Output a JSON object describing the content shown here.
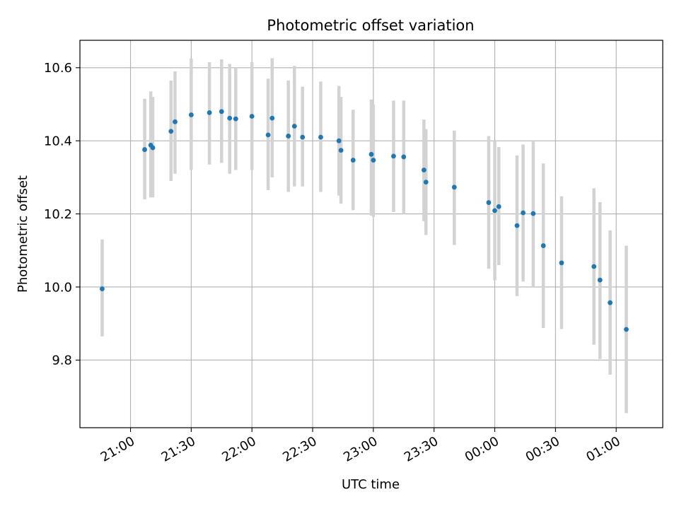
{
  "chart_data": {
    "type": "scatter",
    "title": "Photometric offset variation",
    "xlabel": "UTC time",
    "ylabel": "Photometric offset",
    "x_axis_kind": "time",
    "xlim": [
      "20:35",
      "01:23"
    ],
    "ylim": [
      9.615,
      10.675
    ],
    "x_ticks": [
      "21:00",
      "21:30",
      "22:00",
      "22:30",
      "23:00",
      "23:30",
      "00:00",
      "00:30",
      "01:00"
    ],
    "y_ticks": [
      9.8,
      10.0,
      10.2,
      10.4,
      10.6
    ],
    "y_tick_labels": [
      "9.8",
      "10.0",
      "10.2",
      "10.4",
      "10.6"
    ],
    "grid": true,
    "legend": "none",
    "colors": {
      "points": "#1f77b4",
      "errorbars": "#d3d3d3",
      "grid": "#b0b0b0",
      "axes": "#000000"
    },
    "series": [
      {
        "points": [
          {
            "x": "20:46",
            "y": 9.995,
            "err_low": 9.865,
            "err_high": 10.13
          },
          {
            "x": "21:07",
            "y": 10.376,
            "err_low": 10.24,
            "err_high": 10.515
          },
          {
            "x": "21:10",
            "y": 10.388,
            "err_low": 10.245,
            "err_high": 10.535
          },
          {
            "x": "21:11",
            "y": 10.381,
            "err_low": 10.245,
            "err_high": 10.52
          },
          {
            "x": "21:20",
            "y": 10.426,
            "err_low": 10.29,
            "err_high": 10.565
          },
          {
            "x": "21:22",
            "y": 10.452,
            "err_low": 10.31,
            "err_high": 10.59
          },
          {
            "x": "21:30",
            "y": 10.471,
            "err_low": 10.32,
            "err_high": 10.625
          },
          {
            "x": "21:39",
            "y": 10.477,
            "err_low": 10.335,
            "err_high": 10.615
          },
          {
            "x": "21:45",
            "y": 10.48,
            "err_low": 10.34,
            "err_high": 10.623
          },
          {
            "x": "21:49",
            "y": 10.462,
            "err_low": 10.31,
            "err_high": 10.61
          },
          {
            "x": "21:52",
            "y": 10.46,
            "err_low": 10.32,
            "err_high": 10.6
          },
          {
            "x": "22:00",
            "y": 10.467,
            "err_low": 10.32,
            "err_high": 10.615
          },
          {
            "x": "22:08",
            "y": 10.416,
            "err_low": 10.265,
            "err_high": 10.57
          },
          {
            "x": "22:10",
            "y": 10.462,
            "err_low": 10.3,
            "err_high": 10.626
          },
          {
            "x": "22:18",
            "y": 10.413,
            "err_low": 10.26,
            "err_high": 10.565
          },
          {
            "x": "22:21",
            "y": 10.44,
            "err_low": 10.275,
            "err_high": 10.605
          },
          {
            "x": "22:25",
            "y": 10.41,
            "err_low": 10.275,
            "err_high": 10.548
          },
          {
            "x": "22:34",
            "y": 10.41,
            "err_low": 10.26,
            "err_high": 10.562
          },
          {
            "x": "22:43",
            "y": 10.4,
            "err_low": 10.25,
            "err_high": 10.55
          },
          {
            "x": "22:44",
            "y": 10.374,
            "err_low": 10.228,
            "err_high": 10.52
          },
          {
            "x": "22:50",
            "y": 10.347,
            "err_low": 10.21,
            "err_high": 10.485
          },
          {
            "x": "22:59",
            "y": 10.363,
            "err_low": 10.195,
            "err_high": 10.513
          },
          {
            "x": "23:00",
            "y": 10.347,
            "err_low": 10.192,
            "err_high": 10.5
          },
          {
            "x": "23:10",
            "y": 10.358,
            "err_low": 10.205,
            "err_high": 10.51
          },
          {
            "x": "23:15",
            "y": 10.356,
            "err_low": 10.2,
            "err_high": 10.51
          },
          {
            "x": "23:25",
            "y": 10.32,
            "err_low": 10.18,
            "err_high": 10.458
          },
          {
            "x": "23:26",
            "y": 10.287,
            "err_low": 10.142,
            "err_high": 10.432
          },
          {
            "x": "23:40",
            "y": 10.273,
            "err_low": 10.115,
            "err_high": 10.428
          },
          {
            "x": "23:57",
            "y": 10.231,
            "err_low": 10.05,
            "err_high": 10.413
          },
          {
            "x": "00:00",
            "y": 10.209,
            "err_low": 10.018,
            "err_high": 10.4
          },
          {
            "x": "00:02",
            "y": 10.22,
            "err_low": 10.06,
            "err_high": 10.383
          },
          {
            "x": "00:11",
            "y": 10.168,
            "err_low": 9.975,
            "err_high": 10.36
          },
          {
            "x": "00:14",
            "y": 10.203,
            "err_low": 10.015,
            "err_high": 10.39
          },
          {
            "x": "00:19",
            "y": 10.201,
            "err_low": 10.0,
            "err_high": 10.398
          },
          {
            "x": "00:24",
            "y": 10.113,
            "err_low": 9.888,
            "err_high": 10.338
          },
          {
            "x": "00:33",
            "y": 10.066,
            "err_low": 9.885,
            "err_high": 10.248
          },
          {
            "x": "00:49",
            "y": 10.056,
            "err_low": 9.842,
            "err_high": 10.27
          },
          {
            "x": "00:52",
            "y": 10.019,
            "err_low": 9.803,
            "err_high": 10.232
          },
          {
            "x": "00:57",
            "y": 9.957,
            "err_low": 9.76,
            "err_high": 10.155
          },
          {
            "x": "01:05",
            "y": 9.884,
            "err_low": 9.655,
            "err_high": 10.113
          }
        ]
      }
    ]
  }
}
